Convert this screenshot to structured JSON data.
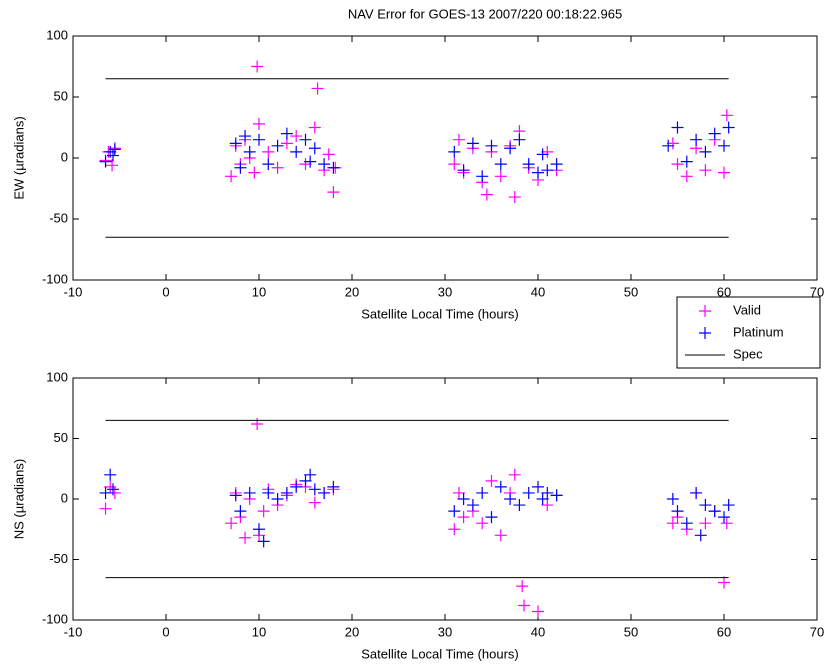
{
  "chart_data": [
    {
      "type": "scatter",
      "title": "NAV Error for GOES-13 2007/220 00:18:22.965",
      "xlabel": "Satellite Local Time (hours)",
      "ylabel": "EW (µradians)",
      "xlim": [
        -10,
        70
      ],
      "ylim": [
        -100,
        100
      ],
      "xticks": [
        -10,
        0,
        10,
        20,
        30,
        40,
        50,
        60,
        70
      ],
      "yticks": [
        -100,
        -50,
        0,
        50,
        100
      ],
      "legend": "lower-right",
      "series": [
        {
          "name": "Valid",
          "color": "#ff00ff",
          "style": "marker",
          "x": [
            -6.5,
            -6.2,
            -5.8,
            -5.5,
            7,
            7.5,
            8,
            8.5,
            9,
            9.5,
            9.8,
            10,
            11,
            12,
            13,
            14,
            15,
            16,
            16.3,
            17,
            17.5,
            18,
            18.2,
            31,
            31.5,
            32,
            33,
            34,
            34.5,
            35,
            36,
            37,
            37.5,
            38,
            39,
            40,
            41,
            42,
            54.5,
            55,
            56,
            57,
            58,
            59,
            60,
            60.3
          ],
          "y": [
            -2,
            5,
            -6,
            8,
            -15,
            10,
            -5,
            15,
            0,
            -12,
            75,
            28,
            5,
            -8,
            12,
            18,
            -5,
            25,
            57,
            -10,
            3,
            -28,
            -8,
            -5,
            15,
            -12,
            8,
            -20,
            -30,
            5,
            -15,
            10,
            -32,
            22,
            -8,
            -18,
            5,
            -10,
            12,
            -5,
            -15,
            8,
            -10,
            15,
            -12,
            35
          ]
        },
        {
          "name": "Platinum",
          "color": "#0000ff",
          "style": "marker",
          "x": [
            -6.5,
            -6,
            -5.7,
            -5.5,
            7.5,
            8,
            8.5,
            9,
            10,
            11,
            12,
            13,
            14,
            15,
            15.5,
            16,
            17,
            18,
            31,
            32,
            33,
            34,
            35,
            36,
            37,
            38,
            39,
            40,
            40.5,
            41,
            42,
            54,
            55,
            56,
            57,
            58,
            59,
            60,
            60.5
          ],
          "y": [
            -3,
            5,
            2,
            7,
            12,
            -8,
            18,
            5,
            15,
            -5,
            10,
            20,
            5,
            15,
            -3,
            8,
            -5,
            -8,
            5,
            -10,
            12,
            -15,
            10,
            -5,
            8,
            15,
            -5,
            -12,
            3,
            -10,
            -5,
            10,
            25,
            -3,
            15,
            5,
            20,
            10,
            25
          ]
        },
        {
          "name": "Spec",
          "color": "#000000",
          "style": "line",
          "x": [
            -6.5,
            60.5,
            null,
            -6.5,
            60.5
          ],
          "y": [
            65,
            65,
            null,
            -65,
            -65
          ]
        }
      ]
    },
    {
      "type": "scatter",
      "xlabel": "Satellite Local Time (hours)",
      "ylabel": "NS (µradians)",
      "xlim": [
        -10,
        70
      ],
      "ylim": [
        -100,
        100
      ],
      "xticks": [
        -10,
        0,
        10,
        20,
        30,
        40,
        50,
        60,
        70
      ],
      "yticks": [
        -100,
        -50,
        0,
        50,
        100
      ],
      "series": [
        {
          "color": "#ff00ff",
          "style": "marker",
          "x": [
            -6.5,
            -6,
            -5.5,
            7,
            7.5,
            8,
            8.5,
            9,
            9.8,
            10,
            10.5,
            11,
            12,
            13,
            14,
            15,
            16,
            17,
            18,
            31,
            31.5,
            32,
            33,
            34,
            35,
            36,
            37,
            37.5,
            38.3,
            38.5,
            40,
            41,
            42,
            54.5,
            55,
            56,
            57,
            58,
            59,
            60,
            60.3
          ],
          "y": [
            -8,
            10,
            5,
            -20,
            5,
            -15,
            -32,
            0,
            62,
            -30,
            -10,
            8,
            -5,
            3,
            12,
            10,
            -3,
            5,
            8,
            -25,
            5,
            -15,
            -10,
            -20,
            15,
            -30,
            5,
            20,
            -72,
            -88,
            -93,
            -5,
            3,
            -20,
            -15,
            -25,
            5,
            -20,
            -10,
            -69,
            -20
          ]
        },
        {
          "color": "#0000ff",
          "style": "marker",
          "x": [
            -6.5,
            -6,
            -5.7,
            7.5,
            8,
            9,
            10,
            10.5,
            11,
            12,
            13,
            14,
            15,
            15.5,
            16,
            17,
            18,
            31,
            32,
            33,
            34,
            35,
            36,
            37,
            38,
            39,
            40,
            40.5,
            41,
            42,
            54.5,
            55,
            56,
            57,
            57.5,
            58,
            59,
            60,
            60.5
          ],
          "y": [
            5,
            20,
            8,
            3,
            -10,
            5,
            -25,
            -35,
            5,
            0,
            5,
            10,
            15,
            20,
            8,
            5,
            10,
            -10,
            0,
            -5,
            5,
            -15,
            10,
            0,
            -5,
            5,
            10,
            0,
            5,
            3,
            0,
            -10,
            -20,
            5,
            -30,
            -5,
            -10,
            -15,
            -5
          ]
        },
        {
          "color": "#000000",
          "style": "line",
          "x": [
            -6.5,
            60.5,
            null,
            -6.5,
            60.5
          ],
          "y": [
            65,
            65,
            null,
            -65,
            -65
          ]
        }
      ]
    }
  ]
}
